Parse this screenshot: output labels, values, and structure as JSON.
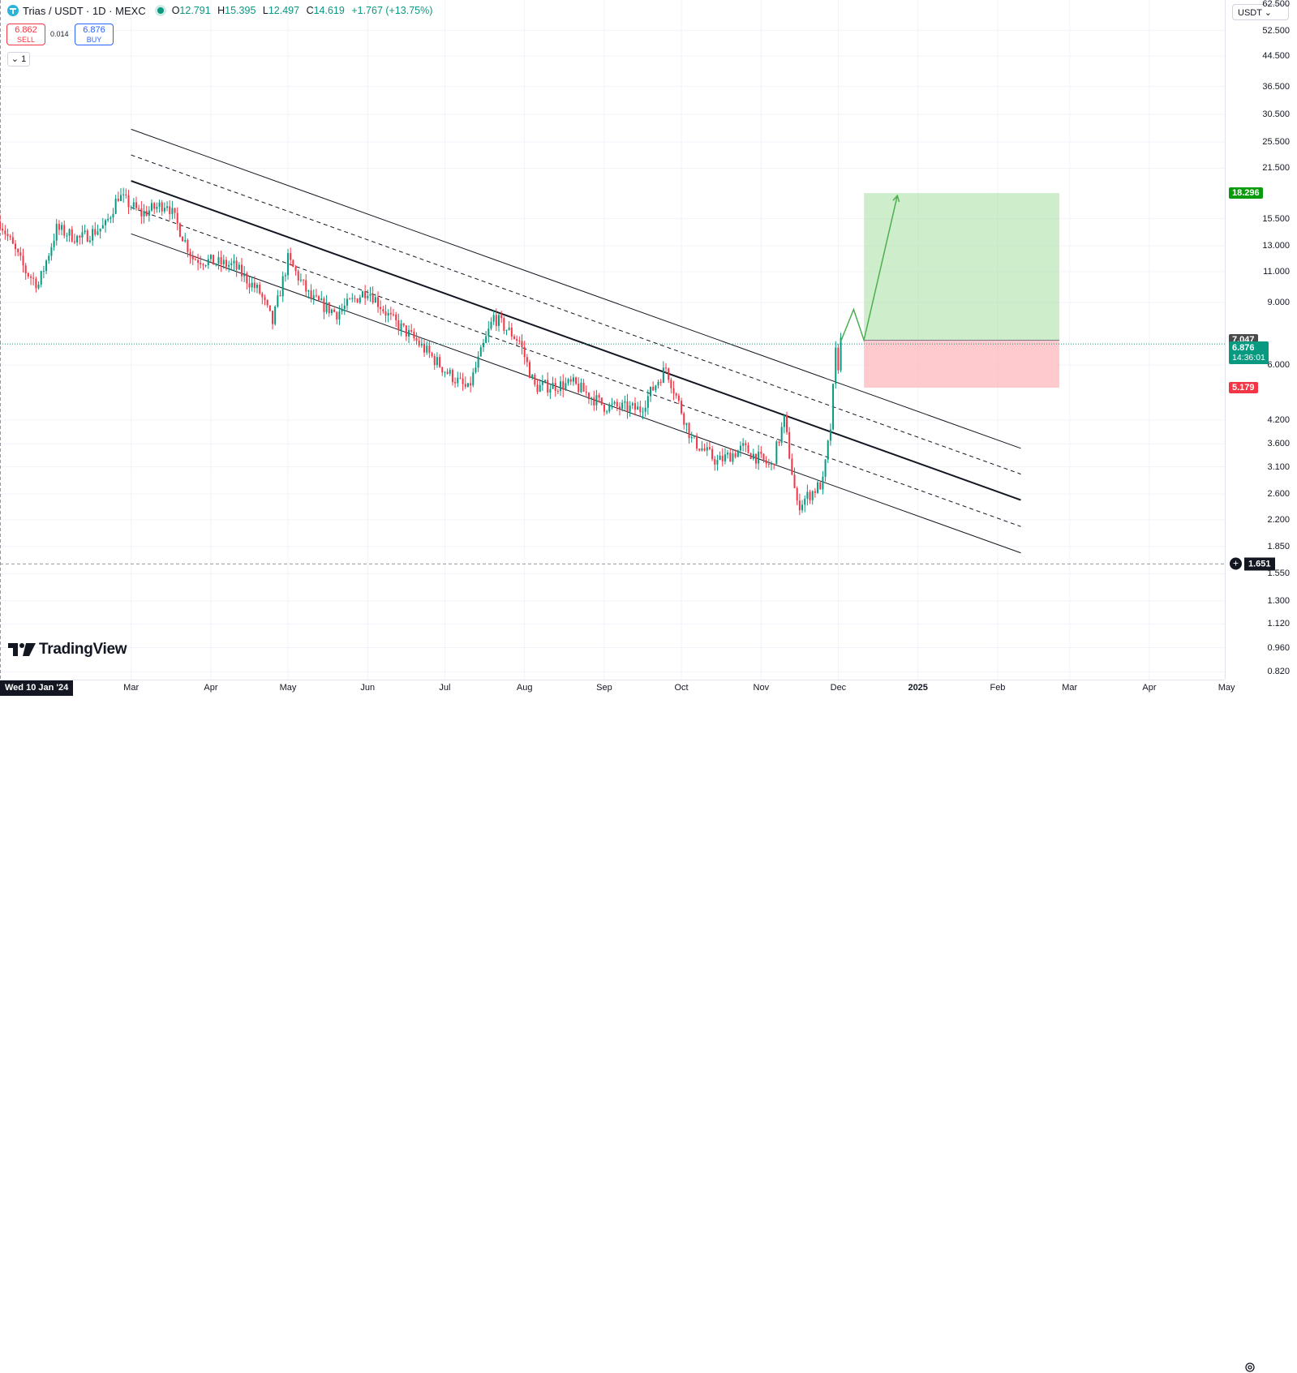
{
  "symbol": {
    "title": "Trias / USDT · 1D · MEXC",
    "ohlc": {
      "o_label": "O",
      "o": "12.791",
      "h_label": "H",
      "h": "15.395",
      "l_label": "L",
      "l": "12.497",
      "c_label": "C",
      "c": "14.619",
      "change": "+1.767 (+13.75%)"
    }
  },
  "trade": {
    "sell_price": "6.862",
    "sell_label": "SELL",
    "spread": "0.014",
    "buy_price": "6.876",
    "buy_label": "BUY"
  },
  "indicator_toggle": "1",
  "branding": "TradingView",
  "currency": "USDT ⌄",
  "price_axis": {
    "top_cut": "62.500",
    "ticks": [
      "52.500",
      "44.500",
      "36.500",
      "30.500",
      "25.500",
      "21.500",
      "15.500",
      "13.000",
      "11.000",
      "9.000",
      "6.000",
      "4.200",
      "3.600",
      "3.100",
      "2.600",
      "2.200",
      "1.850",
      "1.550",
      "1.300",
      "1.120",
      "0.960",
      "0.820"
    ],
    "tag_target": "18.296",
    "tag_entry": "7.047",
    "tag_last": "6.876",
    "countdown": "14:36:01",
    "tag_stop": "5.179",
    "crosshair_price": "1.651"
  },
  "time_axis": {
    "crosshair_date": "Wed 10 Jan '24",
    "labels": [
      "Mar",
      "Apr",
      "May",
      "Jun",
      "Jul",
      "Aug",
      "Sep",
      "Oct",
      "Nov",
      "Dec",
      "2025",
      "Feb",
      "Mar",
      "Apr",
      "May"
    ]
  },
  "colors": {
    "up": "#089981",
    "down": "#f23645",
    "target_zone": "#a5dfa0",
    "stop_zone": "#ffb3b8",
    "tag_target": "#089b0b",
    "tag_entry": "#4a4a4a",
    "tag_stop": "#f23645"
  },
  "chart_data": {
    "type": "candlestick",
    "pair": "Trias / USDT",
    "timeframe": "1D",
    "exchange": "MEXC",
    "y_scale": "log",
    "ylim": [
      0.78,
      64
    ],
    "x_range": [
      "2024-01-10",
      "2025-05-31"
    ],
    "close_path": [
      [
        "2024-01-10",
        15.2
      ],
      [
        "2024-01-20",
        11.0
      ],
      [
        "2024-01-25",
        10.1
      ],
      [
        "2024-02-01",
        14.5
      ],
      [
        "2024-02-10",
        13.6
      ],
      [
        "2024-02-20",
        14.8
      ],
      [
        "2024-02-25",
        18.0
      ],
      [
        "2024-03-05",
        16.0
      ],
      [
        "2024-03-15",
        17.2
      ],
      [
        "2024-03-25",
        12.0
      ],
      [
        "2024-04-10",
        11.4
      ],
      [
        "2024-04-20",
        9.6
      ],
      [
        "2024-04-25",
        7.9
      ],
      [
        "2024-05-01",
        11.9
      ],
      [
        "2024-05-10",
        9.2
      ],
      [
        "2024-05-20",
        8.4
      ],
      [
        "2024-06-01",
        9.8
      ],
      [
        "2024-06-10",
        8.1
      ],
      [
        "2024-06-20",
        7.0
      ],
      [
        "2024-07-01",
        5.8
      ],
      [
        "2024-07-10",
        5.1
      ],
      [
        "2024-07-20",
        8.2
      ],
      [
        "2024-07-30",
        7.0
      ],
      [
        "2024-08-05",
        5.2
      ],
      [
        "2024-08-20",
        5.3
      ],
      [
        "2024-09-01",
        4.6
      ],
      [
        "2024-09-15",
        4.5
      ],
      [
        "2024-09-25",
        5.9
      ],
      [
        "2024-10-05",
        3.7
      ],
      [
        "2024-10-15",
        3.2
      ],
      [
        "2024-10-25",
        3.5
      ],
      [
        "2024-11-05",
        3.1
      ],
      [
        "2024-11-10",
        4.2
      ],
      [
        "2024-11-15",
        2.4
      ],
      [
        "2024-11-20",
        2.6
      ],
      [
        "2024-11-25",
        2.8
      ],
      [
        "2024-11-28",
        4.0
      ],
      [
        "2024-11-30",
        6.5
      ],
      [
        "2024-12-01",
        6.0
      ],
      [
        "2024-12-02",
        7.0
      ]
    ],
    "drawings": {
      "channel": {
        "start": [
          "2024-03-01",
          19.8
        ],
        "end": [
          "2025-02-10",
          2.5
        ],
        "offsets_log": [
          0.335,
          0.168,
          -0.172,
          -0.343
        ],
        "solid": [
          true,
          false,
          true,
          false,
          true
        ]
      },
      "long_position": {
        "start": "2024-12-11",
        "end": "2025-02-25",
        "entry": 7.047,
        "target": 18.296,
        "stop": 5.179
      },
      "projection": [
        [
          "2024-12-02",
          7.0
        ],
        [
          "2024-12-07",
          8.6
        ],
        [
          "2024-12-11",
          7.05
        ],
        [
          "2024-12-24",
          18.0
        ]
      ],
      "low_marker": 1.651
    }
  }
}
